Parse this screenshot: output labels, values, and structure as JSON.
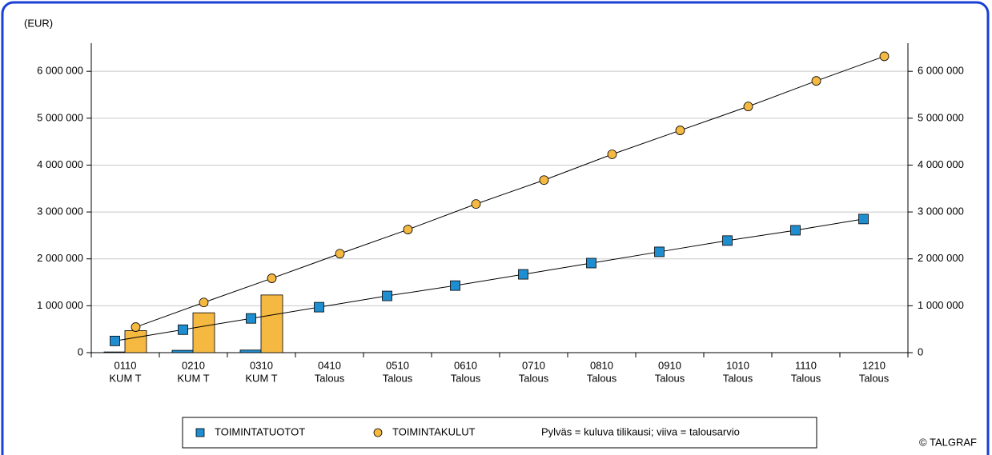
{
  "chart_data": {
    "type": "bar-line",
    "unit_label": "(EUR)",
    "categories": [
      [
        "0110",
        "KUM T"
      ],
      [
        "0210",
        "KUM T"
      ],
      [
        "0310",
        "KUM T"
      ],
      [
        "0410",
        "Talous"
      ],
      [
        "0510",
        "Talous"
      ],
      [
        "0610",
        "Talous"
      ],
      [
        "0710",
        "Talous"
      ],
      [
        "0810",
        "Talous"
      ],
      [
        "0910",
        "Talous"
      ],
      [
        "1010",
        "Talous"
      ],
      [
        "1110",
        "Talous"
      ],
      [
        "1210",
        "Talous"
      ]
    ],
    "series": [
      {
        "name": "TOIMINTATUOTOT",
        "color": "#1f8ed0",
        "marker": "square",
        "bar_values": [
          15000,
          50000,
          55000,
          null,
          null,
          null,
          null,
          null,
          null,
          null,
          null,
          null
        ],
        "line_values": [
          250000,
          490000,
          730000,
          970000,
          1210000,
          1430000,
          1670000,
          1910000,
          2150000,
          2390000,
          2610000,
          2850000
        ]
      },
      {
        "name": "TOIMINTAKULUT",
        "color": "#f5b942",
        "marker": "circle",
        "bar_values": [
          470000,
          850000,
          1230000,
          null,
          null,
          null,
          null,
          null,
          null,
          null,
          null,
          null
        ],
        "line_values": [
          545000,
          1070000,
          1585000,
          2110000,
          2625000,
          3170000,
          3680000,
          4230000,
          4740000,
          5250000,
          5795000,
          6320000
        ]
      }
    ],
    "ylim": [
      0,
      6600000
    ],
    "yticks": [
      0,
      {
        "value": 1000000,
        "label": "1 000 000"
      },
      {
        "value": 2000000,
        "label": "2 000 000"
      },
      {
        "value": 3000000,
        "label": "3 000 000"
      },
      {
        "value": 4000000,
        "label": "4 000 000"
      },
      {
        "value": 5000000,
        "label": "5 000 000"
      },
      {
        "value": 6000000,
        "label": "6 000 000"
      }
    ],
    "grid": true,
    "legend_note": "Pylväs = kuluva tilikausi; viiva  = talousarvio",
    "copyright": "© TALGRAF"
  }
}
